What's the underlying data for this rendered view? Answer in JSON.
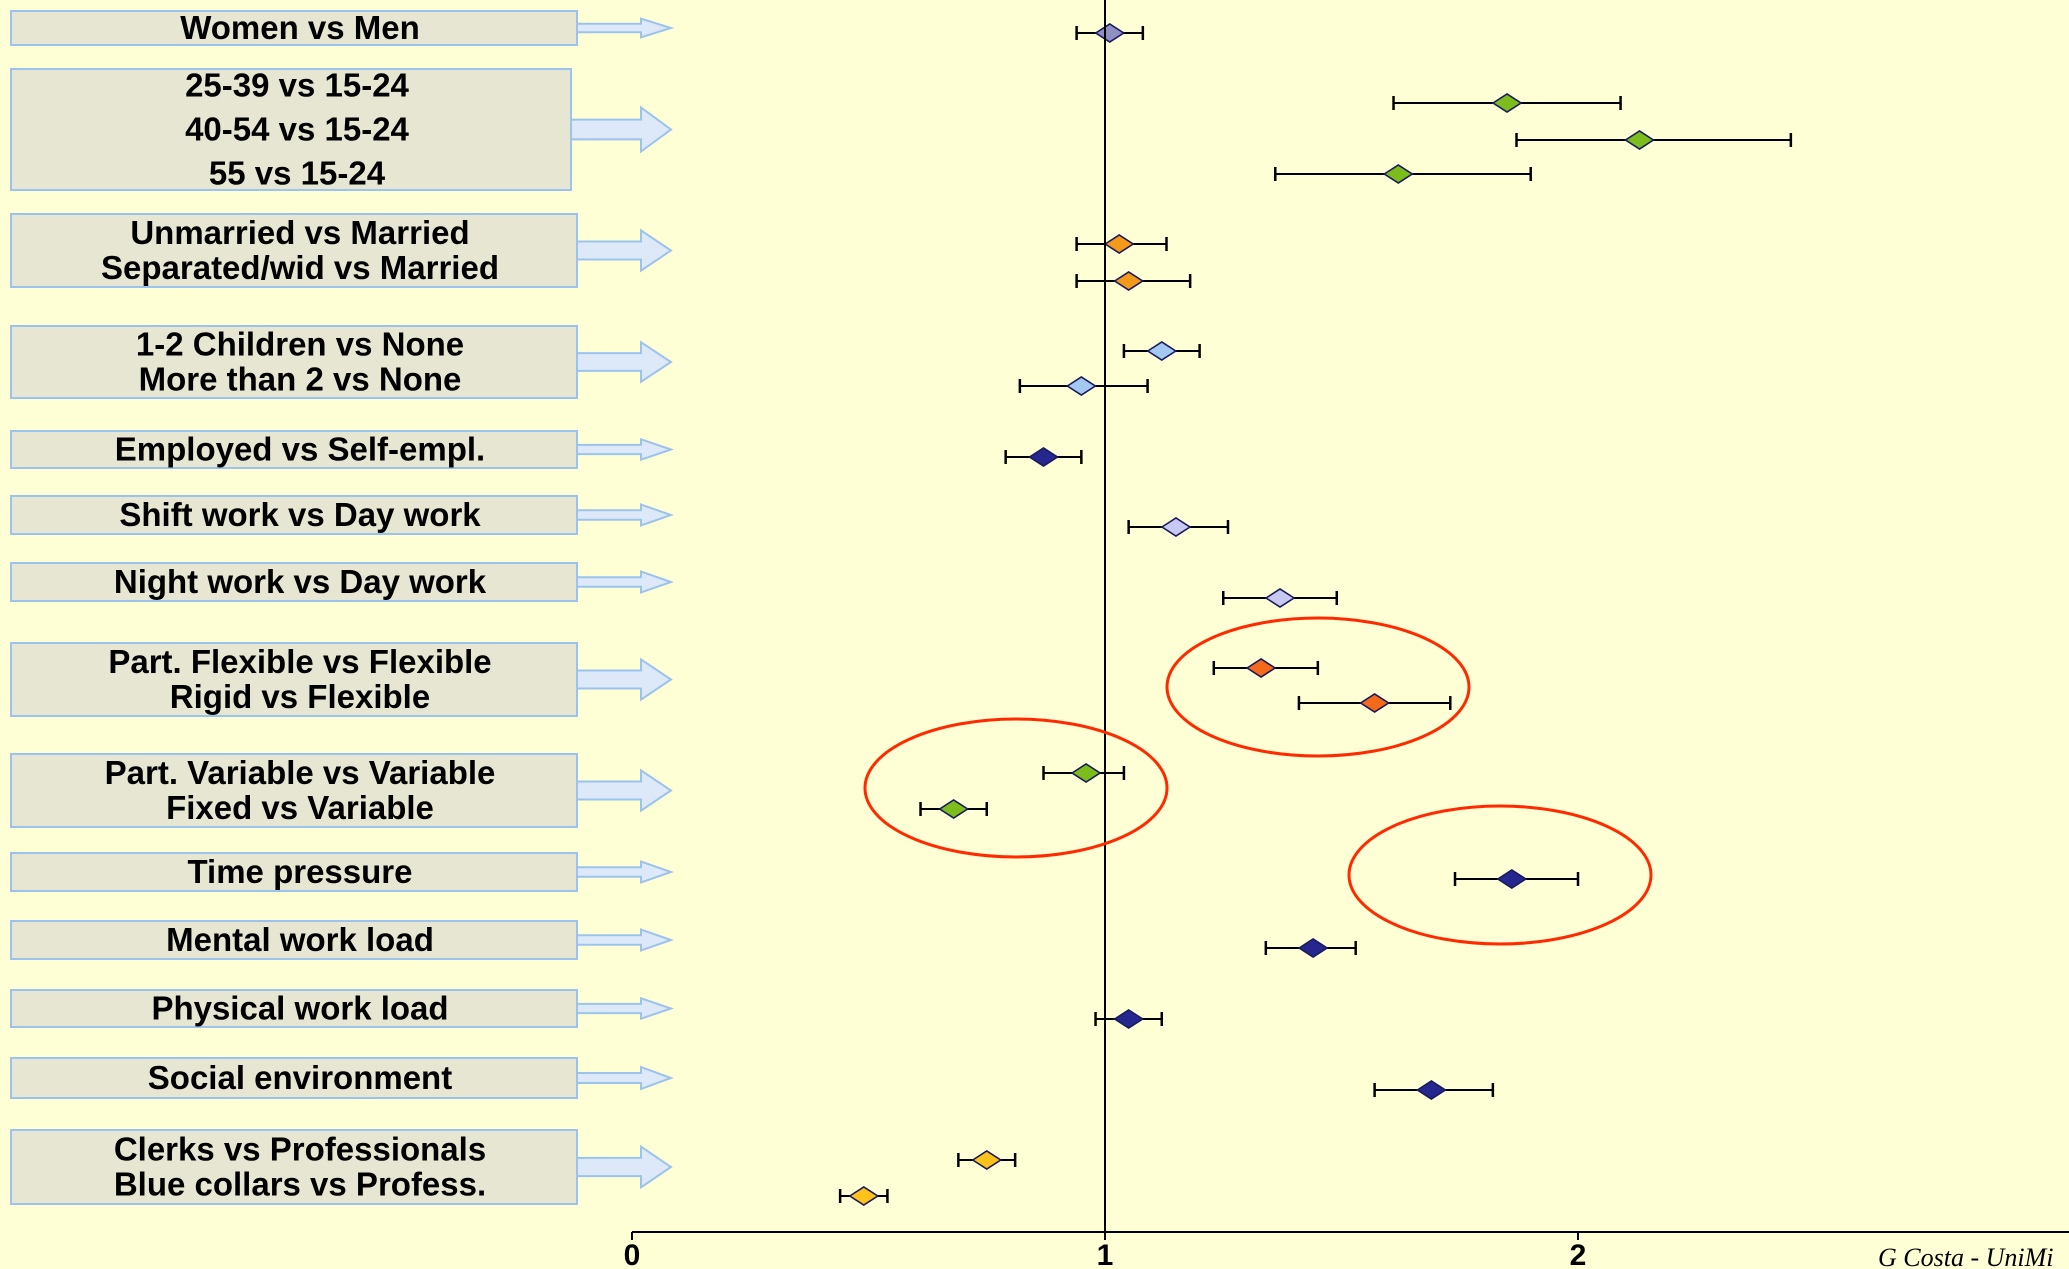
{
  "chart_data": {
    "type": "forest",
    "title": "",
    "xlabel": "",
    "ylabel": "",
    "xlim": [
      0,
      2.9
    ],
    "x_ticks": [
      0,
      1,
      2
    ],
    "x_tick_labels": [
      "0",
      "1",
      "2"
    ],
    "reference_line": 1,
    "grid": false,
    "groups": [
      {
        "labels": [
          "Women vs Men"
        ],
        "rows": [
          {
            "estimate": 1.01,
            "ci": [
              0.94,
              1.08
            ],
            "color": "#8f8fc4"
          }
        ]
      },
      {
        "labels": [
          "25-39 vs 15-24",
          "40-54 vs 15-24",
          "55 vs 15-24"
        ],
        "rows": [
          {
            "estimate": 1.85,
            "ci": [
              1.61,
              2.09
            ],
            "color": "#7cbd1c"
          },
          {
            "estimate": 2.13,
            "ci": [
              1.87,
              2.45
            ],
            "color": "#7cbd1c"
          },
          {
            "estimate": 1.62,
            "ci": [
              1.36,
              1.9
            ],
            "color": "#7cbd1c"
          }
        ]
      },
      {
        "labels": [
          "Unmarried vs Married",
          "Separated/wid vs Married"
        ],
        "rows": [
          {
            "estimate": 1.03,
            "ci": [
              0.94,
              1.13
            ],
            "color": "#f39a1a"
          },
          {
            "estimate": 1.05,
            "ci": [
              0.94,
              1.18
            ],
            "color": "#f39a1a"
          }
        ]
      },
      {
        "labels": [
          "1-2 Children vs None",
          "More than 2 vs None"
        ],
        "rows": [
          {
            "estimate": 1.12,
            "ci": [
              1.04,
              1.2
            ],
            "color": "#a3c9f2"
          },
          {
            "estimate": 0.95,
            "ci": [
              0.82,
              1.09
            ],
            "color": "#a3c9f2"
          }
        ]
      },
      {
        "labels": [
          "Employed vs Self-empl."
        ],
        "rows": [
          {
            "estimate": 0.87,
            "ci": [
              0.79,
              0.95
            ],
            "color": "#26268f"
          }
        ]
      },
      {
        "labels": [
          "Shift work vs Day work"
        ],
        "rows": [
          {
            "estimate": 1.15,
            "ci": [
              1.05,
              1.26
            ],
            "color": "#c8c8f2"
          }
        ]
      },
      {
        "labels": [
          "Night work vs Day work"
        ],
        "rows": [
          {
            "estimate": 1.37,
            "ci": [
              1.25,
              1.49
            ],
            "color": "#c8c8f2"
          }
        ]
      },
      {
        "labels": [
          "Part. Flexible vs Flexible",
          "Rigid  vs Flexible"
        ],
        "rows": [
          {
            "estimate": 1.33,
            "ci": [
              1.23,
              1.45
            ],
            "color": "#f46a1a"
          },
          {
            "estimate": 1.57,
            "ci": [
              1.41,
              1.73
            ],
            "color": "#f46a1a"
          }
        ]
      },
      {
        "labels": [
          "Part. Variable vs Variable",
          "Fixed  vs Variable"
        ],
        "rows": [
          {
            "estimate": 0.96,
            "ci": [
              0.87,
              1.04
            ],
            "color": "#7cbd1c"
          },
          {
            "estimate": 0.68,
            "ci": [
              0.61,
              0.75
            ],
            "color": "#7cbd1c"
          }
        ]
      },
      {
        "labels": [
          "Time pressure"
        ],
        "rows": [
          {
            "estimate": 1.86,
            "ci": [
              1.74,
              2.0
            ],
            "color": "#26268f"
          }
        ]
      },
      {
        "labels": [
          "Mental work load"
        ],
        "rows": [
          {
            "estimate": 1.44,
            "ci": [
              1.34,
              1.53
            ],
            "color": "#26268f"
          }
        ]
      },
      {
        "labels": [
          "Physical work load"
        ],
        "rows": [
          {
            "estimate": 1.05,
            "ci": [
              0.98,
              1.12
            ],
            "color": "#26268f"
          }
        ]
      },
      {
        "labels": [
          "Social environment"
        ],
        "rows": [
          {
            "estimate": 1.69,
            "ci": [
              1.57,
              1.82
            ],
            "color": "#26268f"
          }
        ]
      },
      {
        "labels": [
          "Clerks vs Professionals",
          "Blue collars vs Profess."
        ],
        "rows": [
          {
            "estimate": 0.75,
            "ci": [
              0.69,
              0.81
            ],
            "color": "#ffc21a"
          },
          {
            "estimate": 0.49,
            "ci": [
              0.44,
              0.54
            ],
            "color": "#ffc21a"
          }
        ]
      }
    ],
    "highlights": [
      {
        "group": "Part. Flexible vs Flexible",
        "color": "#ff2a00"
      },
      {
        "group": "Part. Variable vs Variable",
        "color": "#ff2a00"
      },
      {
        "group": "Time pressure",
        "color": "#ff2a00"
      }
    ]
  },
  "footer": {
    "credit": "G Costa - UniMi"
  },
  "colors": {
    "background": "#ffffd5",
    "label_box": "#e6e6d2",
    "label_border": "#9cc3ee",
    "arrow": "#dde9f8"
  }
}
